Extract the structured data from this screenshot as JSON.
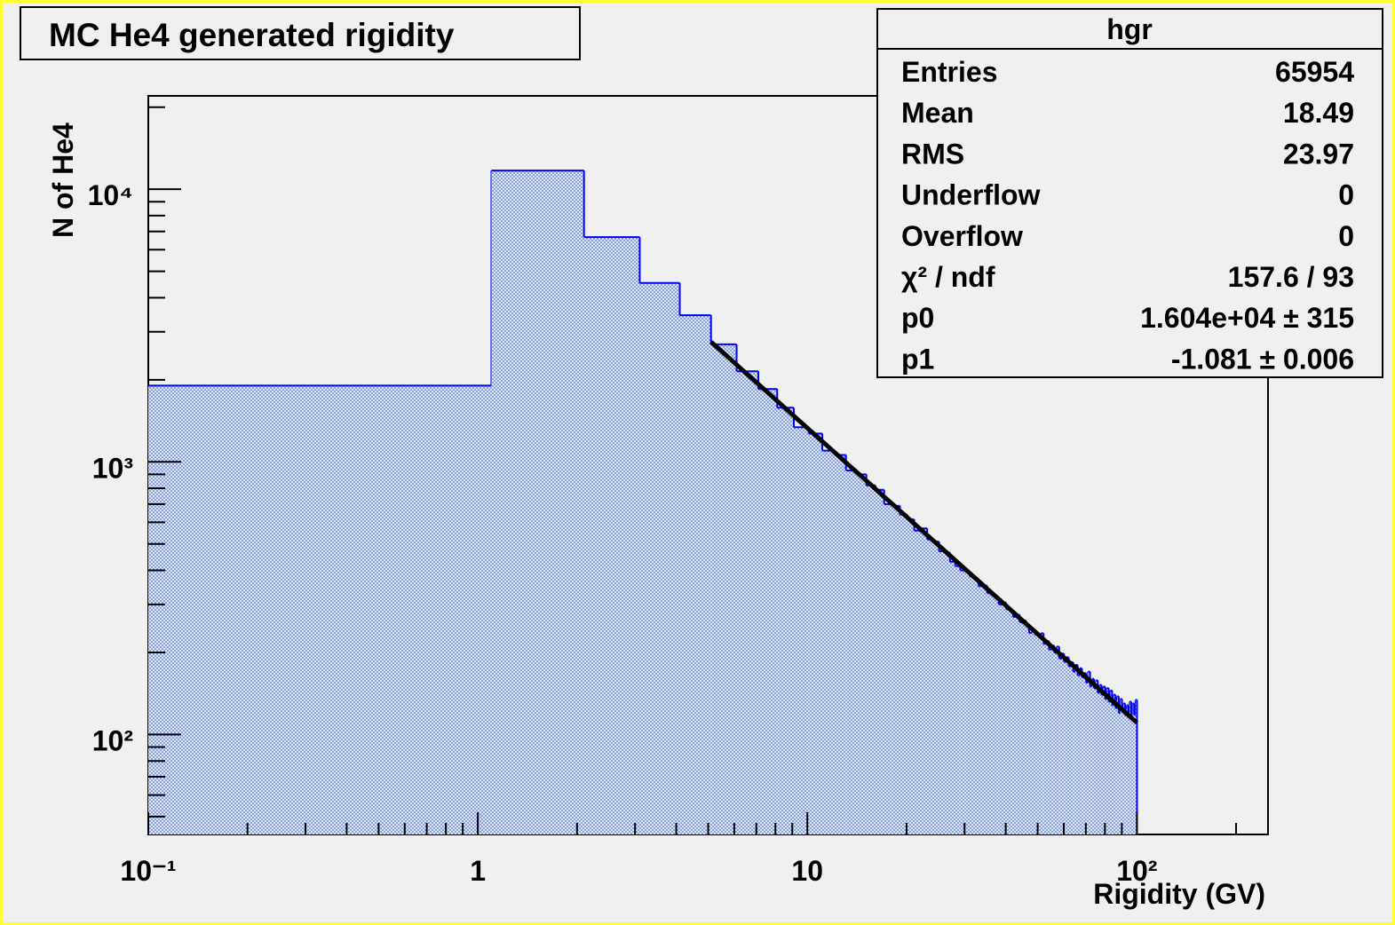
{
  "chart_data": {
    "type": "histogram",
    "title": "MC He4 generated rigidity",
    "x_label": "Rigidity (GV)",
    "y_label": "N of He4",
    "log_x": true,
    "log_y": true,
    "color": "#0000ff",
    "bins": [
      0.1,
      1.1,
      2.1,
      3.1,
      4.1,
      5.1,
      6.1,
      7.1,
      8.1,
      9.1,
      10.1,
      11.1,
      12.1,
      13.1,
      14.1,
      15.1,
      16.1,
      17.1,
      18.1,
      19.1,
      20.1,
      21.1,
      22.1,
      23.1,
      24.1,
      25.1,
      26.1,
      27.1,
      28.1,
      29.1,
      30.1,
      31.1,
      32.1,
      33.1,
      34.1,
      35.1,
      36.1,
      37.1,
      38.1,
      39.1,
      40.1,
      41.1,
      42.1,
      43.1,
      44.1,
      45.1,
      46.1,
      47.1,
      48.1,
      49.1,
      50.1,
      51.1,
      52.1,
      53.1,
      54.1,
      55.1,
      56.1,
      57.1,
      58.1,
      59.1,
      60.1,
      61.1,
      62.1,
      63.1,
      64.1,
      65.1,
      66.1,
      67.1,
      68.1,
      69.1,
      70.1,
      71.1,
      72.1,
      73.1,
      74.1,
      75.1,
      76.1,
      77.1,
      78.1,
      79.1,
      80.1,
      81.1,
      82.1,
      83.1,
      84.1,
      85.1,
      86.1,
      87.1,
      88.1,
      89.1,
      90.1,
      91.1,
      92.1,
      93.1,
      94.1,
      95.1,
      96.1,
      97.1,
      98.1,
      99.1,
      100.1
    ],
    "values": [
      1905,
      11710,
      6670,
      4530,
      3450,
      2700,
      2150,
      1850,
      1580,
      1340,
      1270,
      1100,
      1060,
      930,
      900,
      820,
      790,
      700,
      690,
      640,
      615,
      560,
      570,
      520,
      510,
      470,
      465,
      430,
      415,
      400,
      395,
      380,
      372,
      350,
      352,
      330,
      325,
      318,
      300,
      305,
      288,
      285,
      270,
      275,
      258,
      262,
      250,
      236,
      243,
      232,
      228,
      235,
      215,
      220,
      205,
      212,
      200,
      210,
      190,
      198,
      185,
      192,
      178,
      184,
      170,
      180,
      165,
      175,
      162,
      168,
      155,
      170,
      150,
      160,
      148,
      158,
      142,
      152,
      140,
      150,
      135,
      148,
      132,
      145,
      128,
      140,
      125,
      138,
      120,
      135,
      122,
      130,
      118,
      128,
      120,
      132,
      116,
      130,
      118,
      134
    ],
    "fit": {
      "p0": 16040,
      "p1": -1.081,
      "range": [
        5.1,
        100.1
      ],
      "color": "#000000"
    },
    "xlim": [
      0.1,
      250
    ],
    "ylim": [
      43,
      22000
    ],
    "xticks": [
      {
        "value": 0.1,
        "label": "10⁻¹"
      },
      1,
      10,
      {
        "value": 100,
        "label": "10²"
      }
    ],
    "xminor": [
      0.2,
      0.3,
      0.4,
      0.5,
      0.6,
      0.7,
      0.8,
      0.9,
      2,
      3,
      4,
      5,
      6,
      7,
      8,
      9,
      20,
      30,
      40,
      50,
      60,
      70,
      80,
      90,
      200
    ],
    "yticks": [
      {
        "value": 100,
        "label": "10²"
      },
      {
        "value": 1000,
        "label": "10³"
      },
      {
        "value": 10000,
        "label": "10⁴"
      }
    ],
    "yminor": [
      50,
      60,
      70,
      80,
      90,
      200,
      300,
      400,
      500,
      600,
      700,
      800,
      900,
      2000,
      3000,
      4000,
      5000,
      6000,
      7000,
      8000,
      9000,
      20000
    ],
    "stats": {
      "title": "hgr",
      "rows": [
        {
          "label": "Entries",
          "value": "65954"
        },
        {
          "label": "Mean",
          "value": "18.49"
        },
        {
          "label": "RMS",
          "value": "23.97"
        },
        {
          "label": "Underflow",
          "value": "0"
        },
        {
          "label": "Overflow",
          "value": "0"
        },
        {
          "label": "χ² / ndf",
          "value": "157.6 / 93"
        },
        {
          "label": "p0",
          "value": "1.604e+04 ± 315"
        },
        {
          "label": "p1",
          "value": "-1.081 ± 0.006"
        }
      ]
    }
  }
}
